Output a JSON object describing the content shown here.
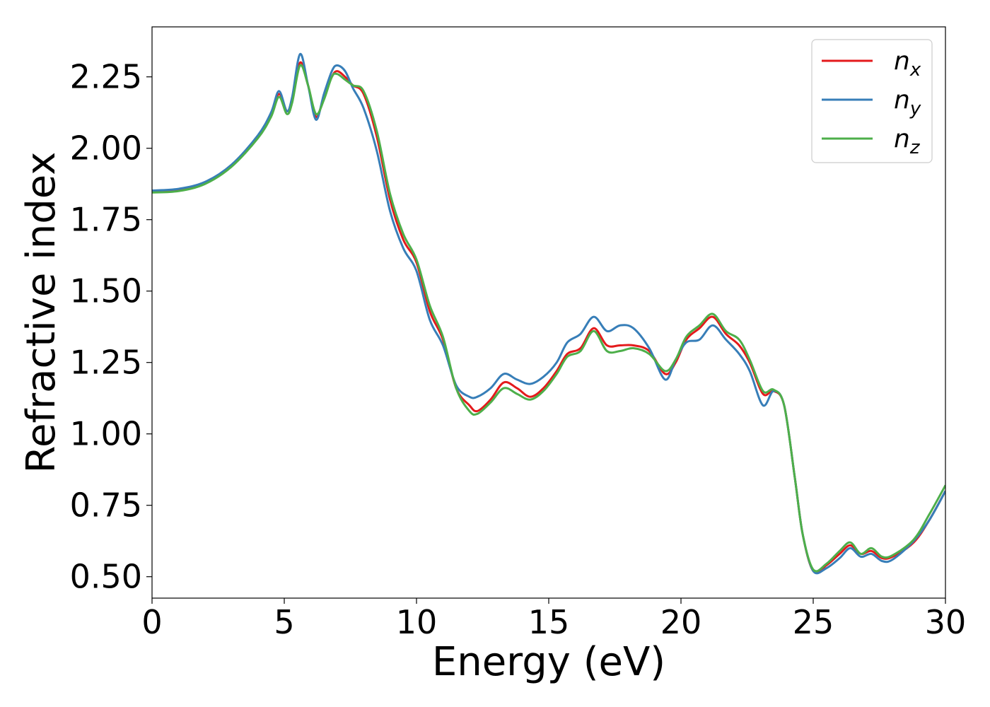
{
  "chart_data": {
    "type": "line",
    "xlabel": "Energy (eV)",
    "ylabel": "Refractive index",
    "xlim": [
      0,
      30
    ],
    "ylim": [
      0.425,
      2.425
    ],
    "xticks": [
      0,
      5,
      10,
      15,
      20,
      25,
      30
    ],
    "xtick_labels": [
      "0",
      "5",
      "10",
      "15",
      "20",
      "25",
      "30"
    ],
    "yticks": [
      0.5,
      0.75,
      1.0,
      1.25,
      1.5,
      1.75,
      2.0,
      2.25
    ],
    "ytick_labels": [
      "0.50",
      "0.75",
      "1.00",
      "1.25",
      "1.50",
      "1.75",
      "2.00",
      "2.25"
    ],
    "grid": false,
    "legend": {
      "placement": "top-right"
    },
    "series": [
      {
        "name": "n",
        "subscript": "x",
        "color": "#e41a1c",
        "points": [
          [
            0,
            1.85
          ],
          [
            1,
            1.855
          ],
          [
            2,
            1.88
          ],
          [
            3,
            1.94
          ],
          [
            4,
            2.04
          ],
          [
            4.5,
            2.12
          ],
          [
            4.8,
            2.19
          ],
          [
            5.1,
            2.13
          ],
          [
            5.3,
            2.17
          ],
          [
            5.6,
            2.3
          ],
          [
            5.9,
            2.22
          ],
          [
            6.2,
            2.11
          ],
          [
            6.5,
            2.18
          ],
          [
            6.8,
            2.25
          ],
          [
            7.0,
            2.27
          ],
          [
            7.3,
            2.25
          ],
          [
            7.6,
            2.22
          ],
          [
            8.0,
            2.19
          ],
          [
            8.5,
            2.04
          ],
          [
            9.0,
            1.82
          ],
          [
            9.5,
            1.68
          ],
          [
            10.0,
            1.6
          ],
          [
            10.5,
            1.43
          ],
          [
            11.0,
            1.33
          ],
          [
            11.5,
            1.16
          ],
          [
            12.0,
            1.1
          ],
          [
            12.3,
            1.08
          ],
          [
            12.8,
            1.12
          ],
          [
            13.3,
            1.18
          ],
          [
            13.8,
            1.16
          ],
          [
            14.3,
            1.13
          ],
          [
            14.8,
            1.16
          ],
          [
            15.3,
            1.22
          ],
          [
            15.7,
            1.28
          ],
          [
            16.2,
            1.3
          ],
          [
            16.7,
            1.37
          ],
          [
            17.2,
            1.31
          ],
          [
            17.7,
            1.31
          ],
          [
            18.2,
            1.31
          ],
          [
            18.8,
            1.29
          ],
          [
            19.4,
            1.21
          ],
          [
            19.8,
            1.25
          ],
          [
            20.2,
            1.33
          ],
          [
            20.7,
            1.37
          ],
          [
            21.2,
            1.41
          ],
          [
            21.7,
            1.35
          ],
          [
            22.2,
            1.31
          ],
          [
            22.6,
            1.25
          ],
          [
            23.1,
            1.14
          ],
          [
            23.5,
            1.15
          ],
          [
            23.9,
            1.1
          ],
          [
            24.3,
            0.85
          ],
          [
            24.6,
            0.65
          ],
          [
            25.0,
            0.52
          ],
          [
            25.5,
            0.54
          ],
          [
            26.0,
            0.58
          ],
          [
            26.4,
            0.61
          ],
          [
            26.8,
            0.58
          ],
          [
            27.2,
            0.59
          ],
          [
            27.6,
            0.565
          ],
          [
            28.0,
            0.57
          ],
          [
            28.8,
            0.62
          ],
          [
            29.4,
            0.7
          ],
          [
            30.0,
            0.8
          ]
        ]
      },
      {
        "name": "n",
        "subscript": "y",
        "color": "#377eb8",
        "points": [
          [
            0,
            1.852
          ],
          [
            1,
            1.858
          ],
          [
            2,
            1.882
          ],
          [
            3,
            1.942
          ],
          [
            4,
            2.045
          ],
          [
            4.5,
            2.125
          ],
          [
            4.8,
            2.2
          ],
          [
            5.1,
            2.13
          ],
          [
            5.3,
            2.18
          ],
          [
            5.6,
            2.33
          ],
          [
            5.9,
            2.22
          ],
          [
            6.2,
            2.1
          ],
          [
            6.5,
            2.19
          ],
          [
            6.8,
            2.27
          ],
          [
            7.0,
            2.29
          ],
          [
            7.3,
            2.27
          ],
          [
            7.6,
            2.21
          ],
          [
            8.0,
            2.14
          ],
          [
            8.5,
            1.99
          ],
          [
            9.0,
            1.78
          ],
          [
            9.5,
            1.65
          ],
          [
            10.0,
            1.57
          ],
          [
            10.5,
            1.4
          ],
          [
            11.0,
            1.31
          ],
          [
            11.5,
            1.17
          ],
          [
            12.0,
            1.13
          ],
          [
            12.3,
            1.13
          ],
          [
            12.8,
            1.16
          ],
          [
            13.3,
            1.21
          ],
          [
            13.8,
            1.19
          ],
          [
            14.3,
            1.175
          ],
          [
            14.8,
            1.2
          ],
          [
            15.3,
            1.25
          ],
          [
            15.7,
            1.32
          ],
          [
            16.2,
            1.35
          ],
          [
            16.7,
            1.41
          ],
          [
            17.2,
            1.36
          ],
          [
            17.7,
            1.38
          ],
          [
            18.2,
            1.37
          ],
          [
            18.8,
            1.3
          ],
          [
            19.4,
            1.19
          ],
          [
            19.8,
            1.26
          ],
          [
            20.2,
            1.32
          ],
          [
            20.7,
            1.33
          ],
          [
            21.2,
            1.38
          ],
          [
            21.7,
            1.33
          ],
          [
            22.2,
            1.28
          ],
          [
            22.6,
            1.22
          ],
          [
            23.1,
            1.1
          ],
          [
            23.5,
            1.15
          ],
          [
            23.9,
            1.1
          ],
          [
            24.3,
            0.85
          ],
          [
            24.6,
            0.65
          ],
          [
            25.0,
            0.52
          ],
          [
            25.5,
            0.53
          ],
          [
            26.0,
            0.565
          ],
          [
            26.4,
            0.6
          ],
          [
            26.8,
            0.57
          ],
          [
            27.2,
            0.58
          ],
          [
            27.6,
            0.555
          ],
          [
            28.0,
            0.56
          ],
          [
            28.8,
            0.625
          ],
          [
            29.4,
            0.7
          ],
          [
            30.0,
            0.8
          ]
        ]
      },
      {
        "name": "n",
        "subscript": "z",
        "color": "#4daf4a",
        "points": [
          [
            0,
            1.845
          ],
          [
            1,
            1.85
          ],
          [
            2,
            1.875
          ],
          [
            3,
            1.935
          ],
          [
            4,
            2.035
          ],
          [
            4.5,
            2.11
          ],
          [
            4.8,
            2.18
          ],
          [
            5.1,
            2.12
          ],
          [
            5.3,
            2.16
          ],
          [
            5.6,
            2.29
          ],
          [
            5.9,
            2.22
          ],
          [
            6.2,
            2.12
          ],
          [
            6.5,
            2.17
          ],
          [
            6.8,
            2.25
          ],
          [
            7.0,
            2.26
          ],
          [
            7.3,
            2.24
          ],
          [
            7.6,
            2.22
          ],
          [
            8.0,
            2.2
          ],
          [
            8.5,
            2.06
          ],
          [
            9.0,
            1.84
          ],
          [
            9.5,
            1.7
          ],
          [
            10.0,
            1.61
          ],
          [
            10.5,
            1.45
          ],
          [
            11.0,
            1.34
          ],
          [
            11.5,
            1.16
          ],
          [
            12.0,
            1.08
          ],
          [
            12.3,
            1.07
          ],
          [
            12.8,
            1.11
          ],
          [
            13.3,
            1.16
          ],
          [
            13.8,
            1.14
          ],
          [
            14.3,
            1.12
          ],
          [
            14.8,
            1.15
          ],
          [
            15.3,
            1.21
          ],
          [
            15.7,
            1.27
          ],
          [
            16.2,
            1.29
          ],
          [
            16.7,
            1.36
          ],
          [
            17.2,
            1.29
          ],
          [
            17.7,
            1.29
          ],
          [
            18.2,
            1.3
          ],
          [
            18.8,
            1.28
          ],
          [
            19.4,
            1.22
          ],
          [
            19.8,
            1.26
          ],
          [
            20.2,
            1.34
          ],
          [
            20.7,
            1.38
          ],
          [
            21.2,
            1.42
          ],
          [
            21.7,
            1.36
          ],
          [
            22.2,
            1.33
          ],
          [
            22.6,
            1.26
          ],
          [
            23.1,
            1.15
          ],
          [
            23.5,
            1.155
          ],
          [
            23.9,
            1.1
          ],
          [
            24.3,
            0.85
          ],
          [
            24.6,
            0.65
          ],
          [
            25.0,
            0.525
          ],
          [
            25.5,
            0.545
          ],
          [
            26.0,
            0.59
          ],
          [
            26.4,
            0.62
          ],
          [
            26.8,
            0.58
          ],
          [
            27.2,
            0.6
          ],
          [
            27.6,
            0.57
          ],
          [
            28.0,
            0.575
          ],
          [
            28.8,
            0.63
          ],
          [
            29.4,
            0.72
          ],
          [
            30.0,
            0.82
          ]
        ]
      }
    ]
  }
}
